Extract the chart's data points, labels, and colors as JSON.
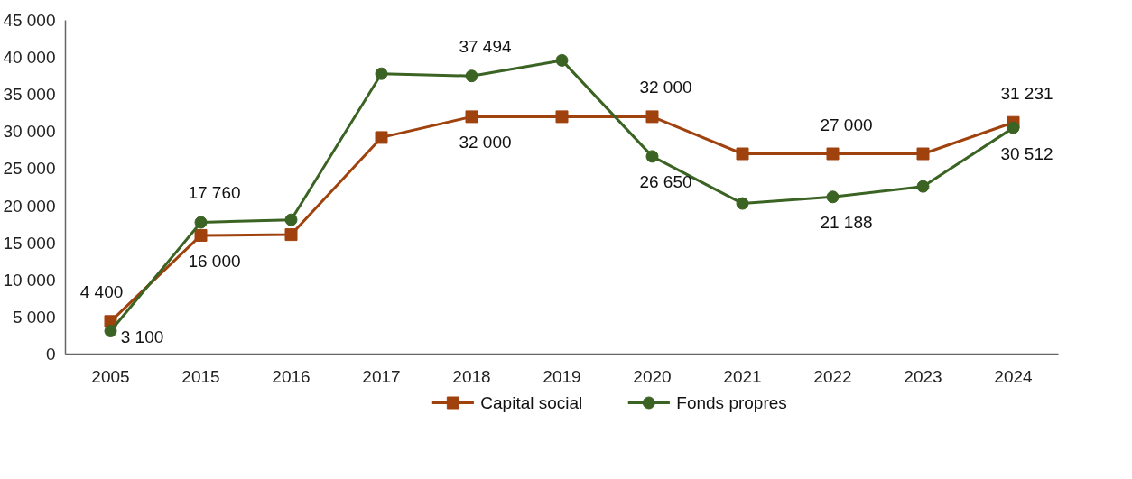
{
  "chart_data": {
    "type": "line",
    "categories": [
      "2005",
      "2015",
      "2016",
      "2017",
      "2018",
      "2019",
      "2020",
      "2021",
      "2022",
      "2023",
      "2024"
    ],
    "series": [
      {
        "name": "Capital social",
        "color": "#a0420e",
        "marker": "square",
        "values": [
          4400,
          16000,
          16100,
          29200,
          32000,
          32000,
          32000,
          27000,
          27000,
          27000,
          31231
        ],
        "value_labels": [
          "4 400",
          "16 000",
          null,
          null,
          "32 000",
          null,
          "32 000",
          null,
          "27 000",
          null,
          "31 231"
        ]
      },
      {
        "name": "Fonds propres",
        "color": "#3b6323",
        "marker": "circle",
        "values": [
          3100,
          17760,
          18100,
          37800,
          37494,
          39600,
          26650,
          20300,
          21188,
          22600,
          30512
        ],
        "value_labels": [
          "3 100",
          "17 760",
          null,
          null,
          "37 494",
          null,
          "26 650",
          null,
          "21 188",
          null,
          "30 512"
        ]
      }
    ],
    "ylim": [
      0,
      45000
    ],
    "yticks": [
      {
        "value": 0,
        "label": "0"
      },
      {
        "value": 5000,
        "label": "5 000"
      },
      {
        "value": 10000,
        "label": "10 000"
      },
      {
        "value": 15000,
        "label": "15 000"
      },
      {
        "value": 20000,
        "label": "20 000"
      },
      {
        "value": 25000,
        "label": "25 000"
      },
      {
        "value": 30000,
        "label": "30 000"
      },
      {
        "value": 35000,
        "label": "35 000"
      },
      {
        "value": 40000,
        "label": "40 000"
      },
      {
        "value": 45000,
        "label": "45 000"
      }
    ],
    "grid": false,
    "legend": "bottom",
    "line_style": "solid"
  }
}
